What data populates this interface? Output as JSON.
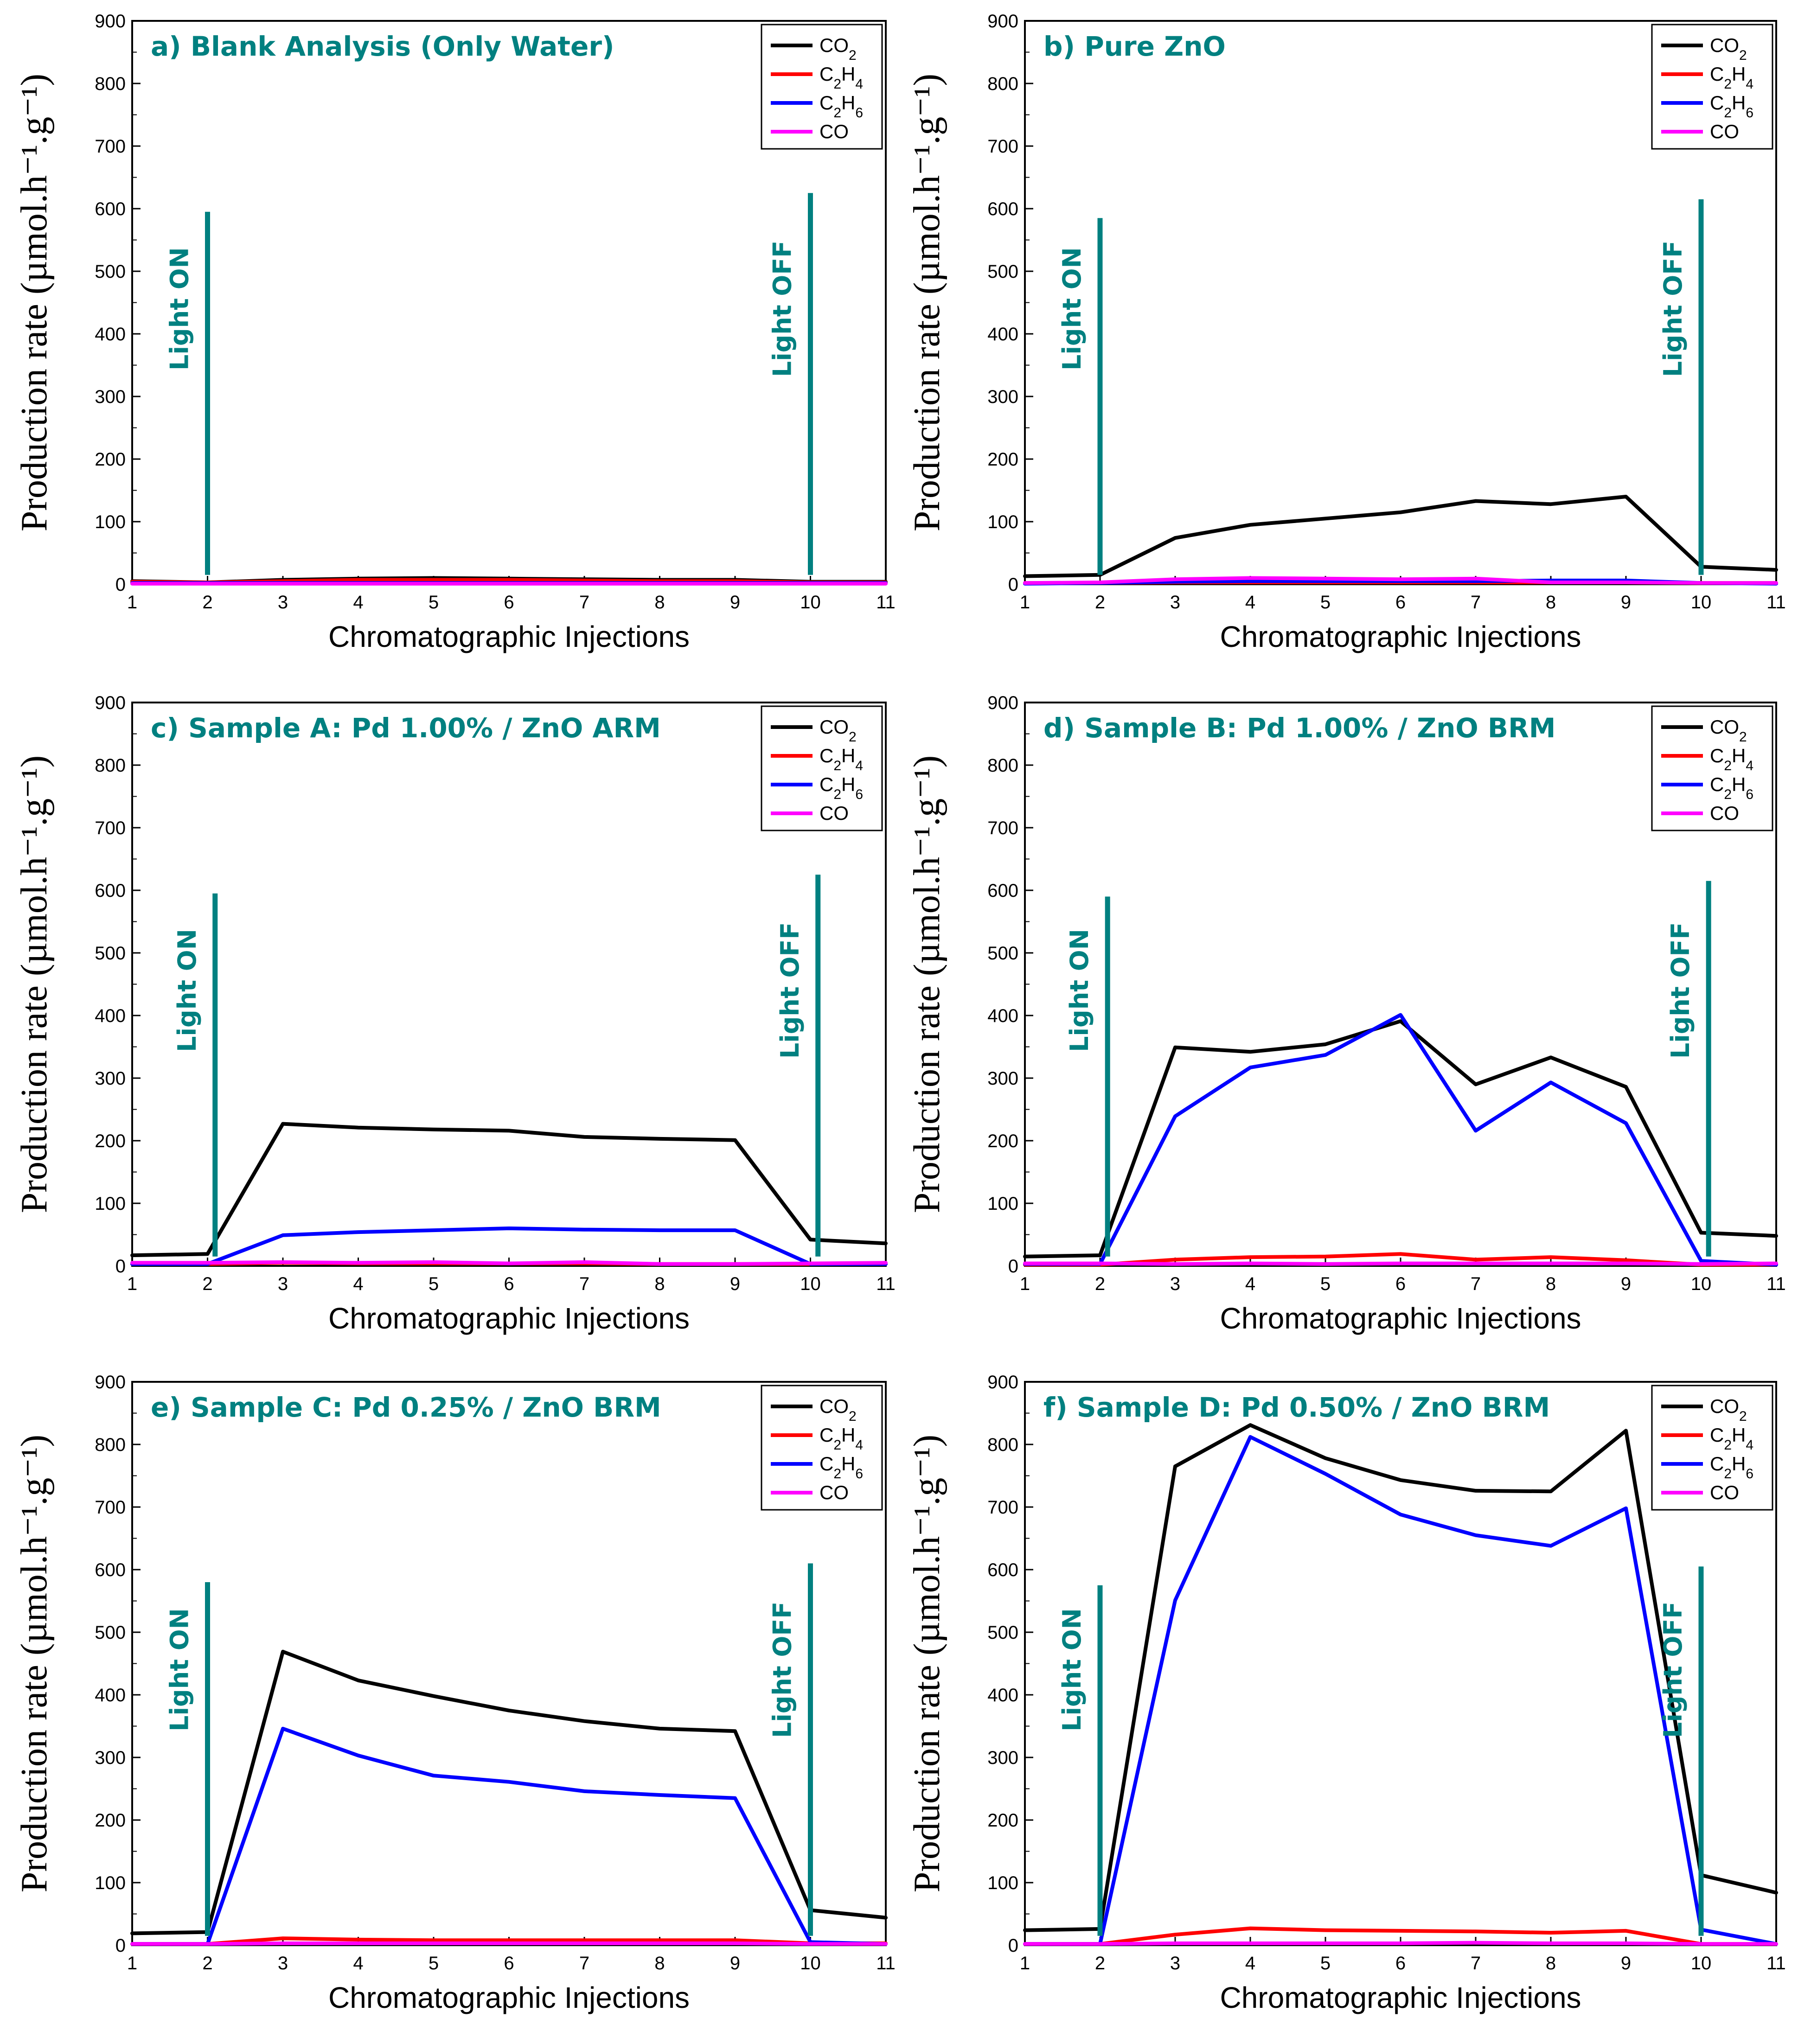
{
  "figure": {
    "accent_color": "#008080"
  },
  "chart_data": [
    {
      "type": "line",
      "title": "a) Blank Analysis (Only Water)",
      "xlabel": "Chromatographic Injections",
      "ylabel": "Production rate (µmol.h⁻¹.g⁻¹)",
      "x": [
        1,
        2,
        3,
        4,
        5,
        6,
        7,
        8,
        9,
        10,
        11
      ],
      "ylim": [
        0,
        900
      ],
      "yticks": [
        0,
        100,
        200,
        300,
        400,
        500,
        600,
        700,
        800,
        900
      ],
      "light_on": {
        "x": 2.0,
        "top": 595,
        "label": "Light ON"
      },
      "light_off": {
        "x": 10.0,
        "top": 625,
        "label": "Light OFF"
      },
      "series": [
        {
          "name": "CO2",
          "color": "#000000",
          "values": [
            5,
            3,
            7,
            9,
            10,
            9,
            8,
            7,
            7,
            4,
            4
          ]
        },
        {
          "name": "C2H4",
          "color": "#ff0000",
          "values": [
            4,
            3,
            5,
            7,
            7,
            7,
            6,
            5,
            5,
            3,
            3
          ]
        },
        {
          "name": "C2H6",
          "color": "#0000ff",
          "values": [
            2,
            2,
            2,
            2,
            2,
            2,
            2,
            2,
            2,
            2,
            2
          ]
        },
        {
          "name": "CO",
          "color": "#ff00ff",
          "values": [
            1,
            1,
            1,
            1,
            1,
            1,
            1,
            1,
            1,
            1,
            1
          ]
        }
      ]
    },
    {
      "type": "line",
      "title": "b) Pure ZnO",
      "xlabel": "Chromatographic Injections",
      "ylabel": "Production rate (µmol.h⁻¹.g⁻¹)",
      "x": [
        1,
        2,
        3,
        4,
        5,
        6,
        7,
        8,
        9,
        10,
        11
      ],
      "ylim": [
        0,
        900
      ],
      "yticks": [
        0,
        100,
        200,
        300,
        400,
        500,
        600,
        700,
        800,
        900
      ],
      "light_on": {
        "x": 2.0,
        "top": 585,
        "label": "Light ON"
      },
      "light_off": {
        "x": 10.0,
        "top": 615,
        "label": "Light OFF"
      },
      "series": [
        {
          "name": "CO2",
          "color": "#000000",
          "values": [
            13,
            15,
            74,
            95,
            105,
            115,
            133,
            128,
            140,
            28,
            23
          ]
        },
        {
          "name": "C2H4",
          "color": "#ff0000",
          "values": [
            2,
            2,
            3,
            3,
            3,
            3,
            3,
            3,
            3,
            2,
            2
          ]
        },
        {
          "name": "C2H6",
          "color": "#0000ff",
          "values": [
            1,
            2,
            4,
            5,
            5,
            5,
            5,
            6,
            6,
            2,
            1
          ]
        },
        {
          "name": "CO",
          "color": "#ff00ff",
          "values": [
            2,
            3,
            8,
            10,
            9,
            8,
            9,
            3,
            3,
            2,
            2
          ]
        }
      ]
    },
    {
      "type": "line",
      "title": "c) Sample A: Pd 1.00% / ZnO ARM",
      "xlabel": "Chromatographic Injections",
      "ylabel": "Production rate (µmol.h⁻¹.g⁻¹)",
      "x": [
        1,
        2,
        3,
        4,
        5,
        6,
        7,
        8,
        9,
        10,
        11
      ],
      "ylim": [
        0,
        900
      ],
      "yticks": [
        0,
        100,
        200,
        300,
        400,
        500,
        600,
        700,
        800,
        900
      ],
      "light_on": {
        "x": 2.1,
        "top": 595,
        "label": "Light ON"
      },
      "light_off": {
        "x": 10.1,
        "top": 625,
        "label": "Light OFF"
      },
      "series": [
        {
          "name": "CO2",
          "color": "#000000",
          "values": [
            17,
            19,
            227,
            221,
            218,
            216,
            206,
            203,
            201,
            42,
            36
          ]
        },
        {
          "name": "C2H4",
          "color": "#ff0000",
          "values": [
            3,
            3,
            5,
            4,
            4,
            4,
            4,
            3,
            3,
            3,
            3
          ]
        },
        {
          "name": "C2H6",
          "color": "#0000ff",
          "values": [
            3,
            3,
            49,
            54,
            57,
            60,
            58,
            57,
            57,
            3,
            3
          ]
        },
        {
          "name": "CO",
          "color": "#ff00ff",
          "values": [
            5,
            5,
            6,
            5,
            6,
            4,
            6,
            3,
            3,
            4,
            5
          ]
        }
      ]
    },
    {
      "type": "line",
      "title": "d) Sample B: Pd 1.00% / ZnO BRM",
      "xlabel": "Chromatographic Injections",
      "ylabel": "Production rate (µmol.h⁻¹.g⁻¹)",
      "x": [
        1,
        2,
        3,
        4,
        5,
        6,
        7,
        8,
        9,
        10,
        11
      ],
      "ylim": [
        0,
        900
      ],
      "yticks": [
        0,
        100,
        200,
        300,
        400,
        500,
        600,
        700,
        800,
        900
      ],
      "light_on": {
        "x": 2.1,
        "top": 590,
        "label": "Light ON"
      },
      "light_off": {
        "x": 10.1,
        "top": 615,
        "label": "Light OFF"
      },
      "series": [
        {
          "name": "CO2",
          "color": "#000000",
          "values": [
            15,
            17,
            349,
            342,
            354,
            391,
            290,
            333,
            286,
            53,
            48
          ]
        },
        {
          "name": "C2H4",
          "color": "#ff0000",
          "values": [
            2,
            2,
            10,
            14,
            15,
            19,
            10,
            14,
            9,
            2,
            2
          ]
        },
        {
          "name": "C2H6",
          "color": "#0000ff",
          "values": [
            3,
            3,
            239,
            317,
            337,
            401,
            216,
            293,
            228,
            8,
            2
          ]
        },
        {
          "name": "CO",
          "color": "#ff00ff",
          "values": [
            4,
            4,
            3,
            4,
            3,
            4,
            4,
            4,
            4,
            3,
            4
          ]
        }
      ]
    },
    {
      "type": "line",
      "title": "e) Sample C: Pd 0.25% / ZnO BRM",
      "xlabel": "Chromatographic Injections",
      "ylabel": "Production rate (µmol.h⁻¹.g⁻¹)",
      "x": [
        1,
        2,
        3,
        4,
        5,
        6,
        7,
        8,
        9,
        10,
        11
      ],
      "ylim": [
        0,
        900
      ],
      "yticks": [
        0,
        100,
        200,
        300,
        400,
        500,
        600,
        700,
        800,
        900
      ],
      "light_on": {
        "x": 2.0,
        "top": 580,
        "label": "Light ON"
      },
      "light_off": {
        "x": 10.0,
        "top": 610,
        "label": "Light OFF"
      },
      "series": [
        {
          "name": "CO2",
          "color": "#000000",
          "values": [
            19,
            21,
            469,
            423,
            398,
            375,
            358,
            346,
            342,
            56,
            44
          ]
        },
        {
          "name": "C2H4",
          "color": "#ff0000",
          "values": [
            2,
            2,
            11,
            9,
            8,
            8,
            8,
            8,
            8,
            3,
            3
          ]
        },
        {
          "name": "C2H6",
          "color": "#0000ff",
          "values": [
            2,
            2,
            346,
            303,
            271,
            261,
            246,
            240,
            235,
            5,
            2
          ]
        },
        {
          "name": "CO",
          "color": "#ff00ff",
          "values": [
            2,
            2,
            3,
            3,
            3,
            3,
            3,
            3,
            3,
            2,
            2
          ]
        }
      ]
    },
    {
      "type": "line",
      "title": "f) Sample D: Pd 0.50% / ZnO BRM",
      "xlabel": "Chromatographic Injections",
      "ylabel": "Production rate (µmol.h⁻¹.g⁻¹)",
      "x": [
        1,
        2,
        3,
        4,
        5,
        6,
        7,
        8,
        9,
        10,
        11
      ],
      "ylim": [
        0,
        900
      ],
      "yticks": [
        0,
        100,
        200,
        300,
        400,
        500,
        600,
        700,
        800,
        900
      ],
      "light_on": {
        "x": 2.0,
        "top": 575,
        "label": "Light ON"
      },
      "light_off": {
        "x": 10.0,
        "top": 605,
        "label": "Light OFF"
      },
      "series": [
        {
          "name": "CO2",
          "color": "#000000",
          "values": [
            24,
            26,
            765,
            831,
            778,
            743,
            726,
            725,
            822,
            112,
            84
          ]
        },
        {
          "name": "C2H4",
          "color": "#ff0000",
          "values": [
            2,
            2,
            17,
            27,
            24,
            23,
            22,
            20,
            23,
            2,
            2
          ]
        },
        {
          "name": "C2H6",
          "color": "#0000ff",
          "values": [
            2,
            2,
            551,
            812,
            753,
            688,
            655,
            638,
            698,
            25,
            2
          ]
        },
        {
          "name": "CO",
          "color": "#ff00ff",
          "values": [
            2,
            2,
            3,
            3,
            3,
            3,
            4,
            3,
            3,
            2,
            2
          ]
        }
      ]
    }
  ]
}
